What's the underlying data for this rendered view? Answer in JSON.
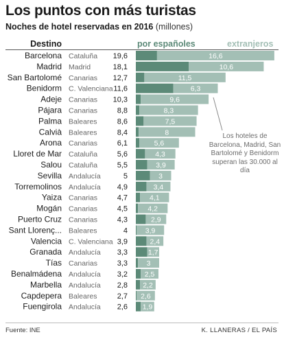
{
  "header": {
    "title": "Los puntos con más turistas",
    "subtitle": "Noches de hotel reservadas en 2016",
    "subtitle_unit": "(millones)",
    "destination_header": "Destino"
  },
  "annotation": "Los hoteles de Barcelona, Madrid, San Bartolomé y Benidorm superan las 30.000 al día",
  "footer": {
    "source": "Fuente: INE",
    "credit": "K. LLANERAS / EL PAÍS"
  },
  "colors": {
    "spanish": "#5c8a78",
    "foreign": "#a3bfb5",
    "region_text": "#666666"
  },
  "chart_data": {
    "type": "bar",
    "orientation": "horizontal",
    "stacked": true,
    "title": "Los puntos con más turistas",
    "subtitle": "Noches de hotel reservadas en 2016 (millones)",
    "legend": [
      "por españoles",
      "extranjeros"
    ],
    "legend_placement": "top",
    "rows": [
      {
        "name": "Barcelona",
        "region": "Cataluña",
        "total": "19,6",
        "spanish": 3.0,
        "foreign": 16.6,
        "foreign_label": "16,6"
      },
      {
        "name": "Madrid",
        "region": "Madrid",
        "total": "18,1",
        "spanish": 7.5,
        "foreign": 10.6,
        "foreign_label": "10,6"
      },
      {
        "name": "San Bartolomé",
        "region": "Canarias",
        "total": "12,7",
        "spanish": 1.2,
        "foreign": 11.5,
        "foreign_label": "11,5"
      },
      {
        "name": "Benidorm",
        "region": "C. Valenciana",
        "total": "11,6",
        "spanish": 5.3,
        "foreign": 6.3,
        "foreign_label": "6,3"
      },
      {
        "name": "Adeje",
        "region": "Canarias",
        "total": "10,3",
        "spanish": 0.7,
        "foreign": 9.6,
        "foreign_label": "9,6"
      },
      {
        "name": "Pájara",
        "region": "Canarias",
        "total": "8,8",
        "spanish": 0.5,
        "foreign": 8.3,
        "foreign_label": "8,3"
      },
      {
        "name": "Palma",
        "region": "Baleares",
        "total": "8,6",
        "spanish": 1.1,
        "foreign": 7.5,
        "foreign_label": "7,5"
      },
      {
        "name": "Calvià",
        "region": "Baleares",
        "total": "8,4",
        "spanish": 0.4,
        "foreign": 8.0,
        "foreign_label": "8"
      },
      {
        "name": "Arona",
        "region": "Canarias",
        "total": "6,1",
        "spanish": 0.5,
        "foreign": 5.6,
        "foreign_label": "5,6"
      },
      {
        "name": "Lloret de Mar",
        "region": "Cataluña",
        "total": "5,6",
        "spanish": 1.3,
        "foreign": 4.3,
        "foreign_label": "4,3"
      },
      {
        "name": "Salou",
        "region": "Cataluña",
        "total": "5,5",
        "spanish": 1.6,
        "foreign": 3.9,
        "foreign_label": "3,9"
      },
      {
        "name": "Sevilla",
        "region": "Andalucía",
        "total": "5",
        "spanish": 2.0,
        "foreign": 3.0,
        "foreign_label": "3"
      },
      {
        "name": "Torremolinos",
        "region": "Andalucía",
        "total": "4,9",
        "spanish": 1.5,
        "foreign": 3.4,
        "foreign_label": "3,4"
      },
      {
        "name": "Yaiza",
        "region": "Canarias",
        "total": "4,7",
        "spanish": 0.6,
        "foreign": 4.1,
        "foreign_label": "4,1"
      },
      {
        "name": "Mogán",
        "region": "Canarias",
        "total": "4,5",
        "spanish": 0.3,
        "foreign": 4.2,
        "foreign_label": "4,2"
      },
      {
        "name": "Puerto Cruz",
        "region": "Canarias",
        "total": "4,3",
        "spanish": 1.4,
        "foreign": 2.9,
        "foreign_label": "2,9"
      },
      {
        "name": "Sant Llorenç...",
        "region": "Baleares",
        "total": "4",
        "spanish": 0.1,
        "foreign": 3.9,
        "foreign_label": "3,9"
      },
      {
        "name": "Valencia",
        "region": "C. Valenciana",
        "total": "3,9",
        "spanish": 1.5,
        "foreign": 2.4,
        "foreign_label": "2,4"
      },
      {
        "name": "Granada",
        "region": "Andalucía",
        "total": "3,3",
        "spanish": 1.6,
        "foreign": 1.7,
        "foreign_label": "1,7"
      },
      {
        "name": "Tías",
        "region": "Canarias",
        "total": "3,3",
        "spanish": 0.3,
        "foreign": 3.0,
        "foreign_label": "3"
      },
      {
        "name": "Benalmádena",
        "region": "Andalucía",
        "total": "3,2",
        "spanish": 0.7,
        "foreign": 2.5,
        "foreign_label": "2,5"
      },
      {
        "name": "Marbella",
        "region": "Andalucía",
        "total": "2,8",
        "spanish": 0.6,
        "foreign": 2.2,
        "foreign_label": "2,2"
      },
      {
        "name": "Capdepera",
        "region": "Baleares",
        "total": "2,7",
        "spanish": 0.1,
        "foreign": 2.6,
        "foreign_label": "2,6"
      },
      {
        "name": "Fuengirola",
        "region": "Andalucía",
        "total": "2,6",
        "spanish": 0.7,
        "foreign": 1.9,
        "foreign_label": "1,9"
      }
    ],
    "xlim": [
      0,
      20
    ]
  }
}
